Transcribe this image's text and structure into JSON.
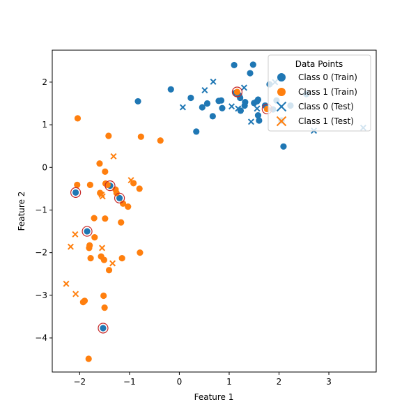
{
  "chart_data": {
    "type": "scatter",
    "xlabel": "Feature 1",
    "ylabel": "Feature 2",
    "xlim": [
      -2.55,
      3.95
    ],
    "ylim": [
      -4.8,
      2.75
    ],
    "xticks": [
      -2,
      -1,
      0,
      1,
      2,
      3
    ],
    "yticks": [
      -4,
      -3,
      -2,
      -1,
      0,
      1,
      2
    ],
    "grid": false,
    "legend": {
      "title": "Data Points",
      "placement": "top-right",
      "entries": [
        {
          "label": "Class 0 (Train)",
          "marker": "circle",
          "color": "#1f77b4"
        },
        {
          "label": "Class 1 (Train)",
          "marker": "circle",
          "color": "#ff7f0e"
        },
        {
          "label": "Class 0 (Test)",
          "marker": "x",
          "color": "#1f77b4"
        },
        {
          "label": "Class 1 (Test)",
          "marker": "x",
          "color": "#ff7f0e"
        }
      ]
    },
    "series": [
      {
        "name": "Class 0 (Train)",
        "marker": "circle",
        "color": "#1f77b4",
        "points": [
          [
            -0.83,
            1.55
          ],
          [
            -0.17,
            1.83
          ],
          [
            0.23,
            1.63
          ],
          [
            0.34,
            0.84
          ],
          [
            0.46,
            1.41
          ],
          [
            0.56,
            1.5
          ],
          [
            0.67,
            1.2
          ],
          [
            0.79,
            1.56
          ],
          [
            0.84,
            1.57
          ],
          [
            0.86,
            1.39
          ],
          [
            1.1,
            2.4
          ],
          [
            1.13,
            1.75
          ],
          [
            1.2,
            1.69
          ],
          [
            1.22,
            1.63
          ],
          [
            1.23,
            1.33
          ],
          [
            1.31,
            1.45
          ],
          [
            1.32,
            1.53
          ],
          [
            1.42,
            2.21
          ],
          [
            1.48,
            2.41
          ],
          [
            1.5,
            1.51
          ],
          [
            1.56,
            1.55
          ],
          [
            1.58,
            1.59
          ],
          [
            1.58,
            1.22
          ],
          [
            1.6,
            1.1
          ],
          [
            1.72,
            1.45
          ],
          [
            1.81,
            1.95
          ],
          [
            1.88,
            1.36
          ],
          [
            1.95,
            1.57
          ],
          [
            2.05,
            1.1
          ],
          [
            2.09,
            0.49
          ],
          [
            2.23,
            1.45
          ],
          [
            2.55,
            1.72
          ],
          [
            -2.08,
            -0.59
          ],
          [
            -1.85,
            -1.5
          ],
          [
            -1.39,
            -0.43
          ],
          [
            -1.2,
            -0.72
          ],
          [
            -1.53,
            -3.77
          ]
        ]
      },
      {
        "name": "Class 1 (Train)",
        "marker": "circle",
        "color": "#ff7f0e",
        "points": [
          [
            -2.04,
            1.15
          ],
          [
            -1.42,
            0.74
          ],
          [
            -0.77,
            0.72
          ],
          [
            -0.38,
            0.63
          ],
          [
            -1.6,
            0.09
          ],
          [
            -1.49,
            -0.1
          ],
          [
            -2.05,
            -0.41
          ],
          [
            -1.79,
            -0.41
          ],
          [
            -1.48,
            -0.38
          ],
          [
            -1.44,
            -0.41
          ],
          [
            -1.28,
            -0.52
          ],
          [
            -1.26,
            -0.6
          ],
          [
            -1.59,
            -0.6
          ],
          [
            -0.92,
            -0.37
          ],
          [
            -0.8,
            -0.5
          ],
          [
            -1.13,
            -0.85
          ],
          [
            -1.03,
            -0.92
          ],
          [
            -1.71,
            -1.19
          ],
          [
            -1.49,
            -1.2
          ],
          [
            -1.17,
            -1.29
          ],
          [
            -1.7,
            -1.64
          ],
          [
            -1.8,
            -1.83
          ],
          [
            -1.81,
            -1.89
          ],
          [
            -1.57,
            -2.09
          ],
          [
            -1.51,
            -2.17
          ],
          [
            -1.78,
            -2.13
          ],
          [
            -1.15,
            -2.13
          ],
          [
            -0.79,
            -2.0
          ],
          [
            -1.41,
            -2.41
          ],
          [
            -1.52,
            -3.01
          ],
          [
            -1.9,
            -3.13
          ],
          [
            -1.93,
            -3.16
          ],
          [
            -1.5,
            -3.29
          ],
          [
            -1.82,
            -4.49
          ],
          [
            1.16,
            1.77
          ],
          [
            1.76,
            1.37
          ]
        ]
      },
      {
        "name": "Class 0 (Test)",
        "marker": "x",
        "color": "#1f77b4",
        "points": [
          [
            0.07,
            1.41
          ],
          [
            0.51,
            1.81
          ],
          [
            0.68,
            2.01
          ],
          [
            1.05,
            1.43
          ],
          [
            1.18,
            1.38
          ],
          [
            1.3,
            1.87
          ],
          [
            1.44,
            1.07
          ],
          [
            1.56,
            1.38
          ],
          [
            1.92,
            2.0
          ],
          [
            2.7,
            0.86
          ],
          [
            3.69,
            0.93
          ]
        ]
      },
      {
        "name": "Class 1 (Test)",
        "marker": "x",
        "color": "#ff7f0e",
        "points": [
          [
            -1.32,
            0.26
          ],
          [
            -0.97,
            -0.3
          ],
          [
            -1.56,
            -0.64
          ],
          [
            -1.54,
            -0.68
          ],
          [
            -2.09,
            -1.57
          ],
          [
            -2.18,
            -1.86
          ],
          [
            -1.55,
            -1.89
          ],
          [
            -1.34,
            -2.25
          ],
          [
            -2.27,
            -2.73
          ],
          [
            -2.08,
            -2.97
          ]
        ]
      },
      {
        "name": "",
        "marker": "ring",
        "color": "#c62828",
        "points": [
          [
            -2.08,
            -0.59
          ],
          [
            -1.85,
            -1.5
          ],
          [
            -1.39,
            -0.43
          ],
          [
            -1.2,
            -0.72
          ],
          [
            -1.53,
            -3.77
          ],
          [
            1.16,
            1.77
          ],
          [
            1.76,
            1.37
          ]
        ]
      }
    ]
  }
}
